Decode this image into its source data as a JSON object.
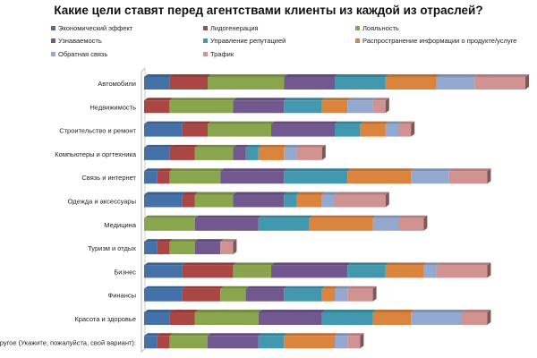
{
  "chart_data": {
    "type": "bar",
    "orientation": "horizontal",
    "stacked": true,
    "title": "Какие цели ставят перед агентствами клиенты из каждой из отраслей?",
    "xlabel": "",
    "ylabel": "",
    "legend_position": "top",
    "categories": [
      "Автомобили",
      "Недвижимость",
      "Строительство и ремонт",
      "Компьютеры и оргтехника",
      "Связь и интернет",
      "Одежда и аксессуары",
      "Медицина",
      "Туризм и отдых",
      "Бизнес",
      "Финансы",
      "Красота и здоровье",
      "Другое (Укажите, пожалуйста, свой вариант):"
    ],
    "series": [
      {
        "name": "Экономический эффект",
        "color": "#4472a8",
        "values": [
          2,
          0,
          3,
          2,
          1,
          3,
          0,
          1,
          3,
          3,
          2,
          1
        ]
      },
      {
        "name": "Лидогенерация",
        "color": "#aa4643",
        "values": [
          3,
          2,
          2,
          2,
          1,
          1,
          0,
          1,
          4,
          3,
          2,
          1
        ]
      },
      {
        "name": "Лояльность",
        "color": "#89a54e",
        "values": [
          6,
          5,
          5,
          3,
          4,
          3,
          4,
          2,
          3,
          2,
          5,
          3
        ]
      },
      {
        "name": "Узнаваемость",
        "color": "#71588f",
        "values": [
          4,
          4,
          5,
          1,
          5,
          4,
          5,
          2,
          6,
          3,
          5,
          4
        ]
      },
      {
        "name": "Управление репутацией",
        "color": "#4198af",
        "values": [
          4,
          3,
          2,
          1,
          5,
          1,
          4,
          0,
          3,
          3,
          4,
          2
        ]
      },
      {
        "name": "Распространение информации о продукте/услуге",
        "color": "#db843d",
        "values": [
          4,
          2,
          2,
          2,
          5,
          2,
          5,
          0,
          3,
          1,
          3,
          4
        ]
      },
      {
        "name": "Обратная связь",
        "color": "#93a9cf",
        "values": [
          3,
          2,
          1,
          1,
          3,
          1,
          2,
          0,
          1,
          1,
          4,
          1
        ]
      },
      {
        "name": "Трафик",
        "color": "#d19392",
        "values": [
          4,
          1,
          1,
          2,
          3,
          4,
          2,
          1,
          4,
          2,
          2,
          1
        ]
      }
    ]
  }
}
